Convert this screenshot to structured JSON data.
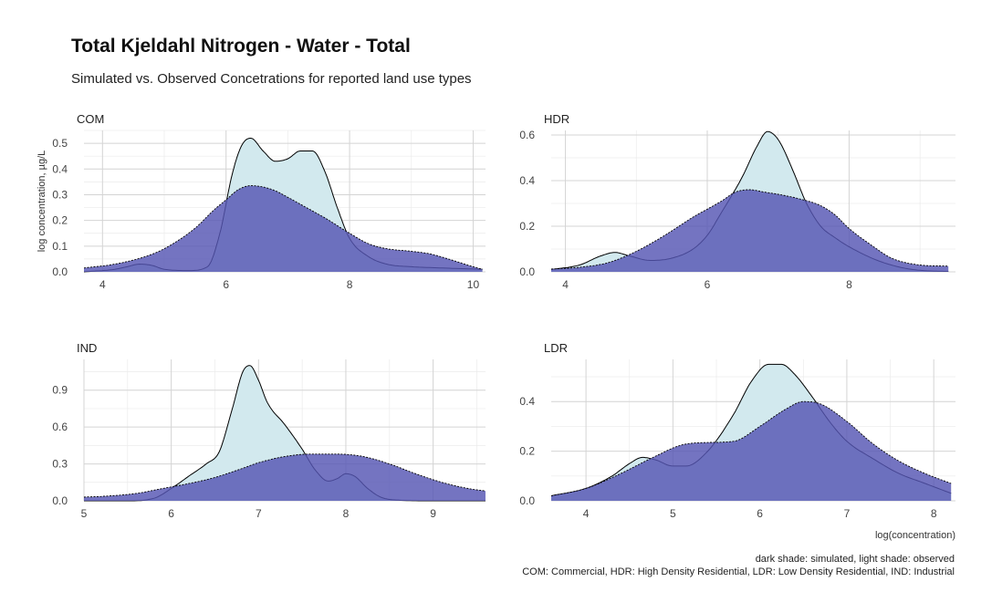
{
  "title": "Total Kjeldahl Nitrogen - Water - Total",
  "subtitle": "Simulated vs. Observed Concetrations for reported land use types",
  "caption_lines": [
    "dark shade: simulated, light shade: observed",
    "COM: Commercial, HDR: High Density Residential, LDR: Low Density Residential, IND: Industrial"
  ],
  "colors": {
    "observed_fill": "#d2e9ee",
    "simulated_fill": "#5555b3",
    "observed_line": "#000000",
    "simulated_line": "#000000"
  },
  "chart_data": [
    {
      "type": "area",
      "panel": "COM",
      "ylabel": "log concentration, µg/L",
      "xlabel": "",
      "xlim": [
        3.7,
        10.2
      ],
      "ylim": [
        0,
        0.55
      ],
      "xticks": [
        4,
        6,
        8,
        10
      ],
      "yticks": [
        0,
        0.1,
        0.2,
        0.3,
        0.4,
        0.5
      ],
      "ytick_labels": [
        "0.0",
        "0.1",
        "0.2",
        "0.3",
        "0.4",
        "0.5"
      ],
      "series": [
        {
          "role": "simulated",
          "x": [
            3.7,
            4.2,
            4.7,
            5.0,
            5.5,
            5.8,
            6.0,
            6.2,
            6.4,
            6.6,
            6.8,
            7.0,
            7.3,
            7.6,
            8.0,
            8.3,
            8.6,
            9.0,
            9.3,
            9.6,
            10.0,
            10.15
          ],
          "y": [
            0.015,
            0.03,
            0.06,
            0.09,
            0.17,
            0.24,
            0.28,
            0.32,
            0.335,
            0.33,
            0.315,
            0.29,
            0.25,
            0.21,
            0.15,
            0.11,
            0.09,
            0.08,
            0.07,
            0.05,
            0.02,
            0.01
          ]
        },
        {
          "role": "observed",
          "x": [
            3.7,
            4.2,
            4.4,
            4.6,
            4.8,
            5.0,
            5.4,
            5.7,
            5.9,
            6.1,
            6.25,
            6.4,
            6.6,
            6.8,
            7.0,
            7.2,
            7.4,
            7.6,
            7.8,
            8.0,
            8.3,
            8.6,
            9.0,
            9.5,
            10.15
          ],
          "y": [
            0.0,
            0.01,
            0.02,
            0.03,
            0.025,
            0.01,
            0.005,
            0.02,
            0.15,
            0.38,
            0.49,
            0.52,
            0.47,
            0.43,
            0.44,
            0.47,
            0.47,
            0.39,
            0.25,
            0.13,
            0.06,
            0.03,
            0.02,
            0.015,
            0.01
          ]
        }
      ]
    },
    {
      "type": "area",
      "panel": "HDR",
      "ylabel": "",
      "xlabel": "",
      "xlim": [
        3.8,
        9.5
      ],
      "ylim": [
        0,
        0.62
      ],
      "xticks": [
        4,
        6,
        8
      ],
      "yticks": [
        0,
        0.2,
        0.4,
        0.6
      ],
      "ytick_labels": [
        "0.0",
        "0.2",
        "0.4",
        "0.6"
      ],
      "series": [
        {
          "role": "simulated",
          "x": [
            3.8,
            4.2,
            4.6,
            5.0,
            5.4,
            5.8,
            6.2,
            6.4,
            6.6,
            6.8,
            7.0,
            7.3,
            7.6,
            7.8,
            8.0,
            8.3,
            8.6,
            9.0,
            9.4
          ],
          "y": [
            0.012,
            0.02,
            0.04,
            0.09,
            0.16,
            0.24,
            0.31,
            0.35,
            0.36,
            0.35,
            0.34,
            0.32,
            0.29,
            0.25,
            0.19,
            0.12,
            0.06,
            0.03,
            0.025
          ]
        },
        {
          "role": "observed",
          "x": [
            3.8,
            4.2,
            4.5,
            4.7,
            4.9,
            5.2,
            5.5,
            5.8,
            6.0,
            6.2,
            6.5,
            6.7,
            6.85,
            7.0,
            7.2,
            7.4,
            7.6,
            7.8,
            8.0,
            8.4,
            8.8,
            9.2,
            9.4
          ],
          "y": [
            0.01,
            0.03,
            0.07,
            0.085,
            0.07,
            0.05,
            0.06,
            0.1,
            0.16,
            0.26,
            0.42,
            0.55,
            0.615,
            0.58,
            0.45,
            0.3,
            0.2,
            0.15,
            0.11,
            0.05,
            0.015,
            0.003,
            0.002
          ]
        }
      ]
    },
    {
      "type": "area",
      "panel": "IND",
      "ylabel": "",
      "xlabel": "",
      "xlim": [
        5.0,
        9.6
      ],
      "ylim": [
        0,
        1.15
      ],
      "xticks": [
        5,
        6,
        7,
        8,
        9
      ],
      "yticks": [
        0,
        0.3,
        0.6,
        0.9
      ],
      "ytick_labels": [
        "0.0",
        "0.3",
        "0.6",
        "0.9"
      ],
      "series": [
        {
          "role": "simulated",
          "x": [
            5.0,
            5.3,
            5.6,
            5.9,
            6.2,
            6.5,
            6.8,
            7.0,
            7.3,
            7.6,
            7.9,
            8.2,
            8.5,
            8.8,
            9.1,
            9.4,
            9.6
          ],
          "y": [
            0.03,
            0.04,
            0.06,
            0.1,
            0.14,
            0.19,
            0.26,
            0.31,
            0.36,
            0.38,
            0.38,
            0.36,
            0.3,
            0.22,
            0.15,
            0.1,
            0.08
          ]
        },
        {
          "role": "observed",
          "x": [
            5.0,
            5.5,
            5.8,
            6.0,
            6.2,
            6.4,
            6.55,
            6.7,
            6.82,
            6.9,
            7.0,
            7.1,
            7.3,
            7.5,
            7.65,
            7.8,
            7.9,
            8.0,
            8.1,
            8.25,
            8.4,
            8.6,
            9.0,
            9.6
          ],
          "y": [
            0.0,
            0.0,
            0.02,
            0.1,
            0.2,
            0.3,
            0.4,
            0.75,
            1.05,
            1.1,
            0.98,
            0.8,
            0.62,
            0.42,
            0.25,
            0.16,
            0.18,
            0.22,
            0.2,
            0.1,
            0.03,
            0.005,
            0.0,
            0.0
          ]
        }
      ]
    },
    {
      "type": "area",
      "panel": "LDR",
      "ylabel": "",
      "xlabel": "log(concentration)",
      "xlim": [
        3.6,
        8.25
      ],
      "ylim": [
        0,
        0.57
      ],
      "xticks": [
        4,
        5,
        6,
        7,
        8
      ],
      "yticks": [
        0,
        0.2,
        0.4
      ],
      "ytick_labels": [
        "0.0",
        "0.2",
        "0.4"
      ],
      "series": [
        {
          "role": "simulated",
          "x": [
            3.6,
            4.0,
            4.4,
            4.8,
            5.1,
            5.4,
            5.7,
            6.0,
            6.3,
            6.5,
            6.7,
            7.0,
            7.3,
            7.6,
            7.9,
            8.2
          ],
          "y": [
            0.02,
            0.05,
            0.11,
            0.18,
            0.225,
            0.235,
            0.24,
            0.3,
            0.37,
            0.4,
            0.39,
            0.32,
            0.23,
            0.16,
            0.11,
            0.07
          ]
        },
        {
          "role": "observed",
          "x": [
            3.6,
            4.0,
            4.3,
            4.5,
            4.65,
            4.8,
            5.0,
            5.15,
            5.4,
            5.7,
            5.9,
            6.1,
            6.25,
            6.4,
            6.6,
            6.8,
            7.0,
            7.3,
            7.6,
            7.9,
            8.2
          ],
          "y": [
            0.02,
            0.05,
            0.1,
            0.15,
            0.175,
            0.165,
            0.14,
            0.14,
            0.2,
            0.35,
            0.48,
            0.55,
            0.55,
            0.51,
            0.42,
            0.32,
            0.24,
            0.17,
            0.11,
            0.07,
            0.03
          ]
        }
      ]
    }
  ]
}
